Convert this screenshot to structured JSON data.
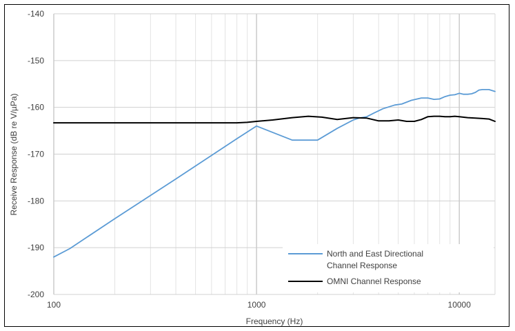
{
  "chart_data": {
    "type": "line",
    "xlabel": "Frequency (Hz)",
    "ylabel": "Receive Response (dB re V/µPa)",
    "xscale": "log",
    "xlim": [
      100,
      15000
    ],
    "ylim": [
      -200,
      -140
    ],
    "x_ticks": [
      "100",
      "1000",
      "10000"
    ],
    "y_ticks": [
      "-140",
      "-150",
      "-160",
      "-170",
      "-180",
      "-190",
      "-200"
    ],
    "grid": true,
    "legend_position": "bottom-right",
    "series": [
      {
        "name": "North and East Directional Channel Response",
        "color": "#5b9bd5",
        "x": [
          100,
          120,
          200,
          400,
          800,
          1000,
          1500,
          2000,
          2500,
          3000,
          3200,
          3500,
          3800,
          4200,
          4800,
          5200,
          5800,
          6500,
          7000,
          7500,
          8000,
          8500,
          9000,
          9500,
          10000,
          10500,
          11000,
          11500,
          12000,
          12500,
          13000,
          14000,
          15000
        ],
        "y": [
          -192.0,
          -190.2,
          -183.8,
          -175.3,
          -166.7,
          -164.0,
          -167.0,
          -167.0,
          -164.5,
          -162.7,
          -162.3,
          -162.0,
          -161.2,
          -160.3,
          -159.5,
          -159.3,
          -158.5,
          -158.0,
          -158.0,
          -158.3,
          -158.2,
          -157.7,
          -157.4,
          -157.3,
          -157.0,
          -157.2,
          -157.2,
          -157.1,
          -156.8,
          -156.3,
          -156.2,
          -156.2,
          -156.6
        ]
      },
      {
        "name": "OMNI Channel Response",
        "color": "#000000",
        "x": [
          100,
          200,
          400,
          700,
          800,
          900,
          1000,
          1200,
          1500,
          1800,
          2100,
          2500,
          3000,
          3500,
          4000,
          4500,
          5000,
          5500,
          6000,
          6500,
          7000,
          7500,
          8000,
          8500,
          9000,
          9500,
          10000,
          11000,
          12000,
          13000,
          14000,
          15000
        ],
        "y": [
          -163.3,
          -163.3,
          -163.3,
          -163.3,
          -163.3,
          -163.2,
          -163.0,
          -162.7,
          -162.2,
          -161.9,
          -162.1,
          -162.6,
          -162.2,
          -162.3,
          -162.9,
          -162.9,
          -162.7,
          -163.0,
          -163.0,
          -162.6,
          -162.0,
          -161.9,
          -161.9,
          -162.0,
          -162.0,
          -161.9,
          -162.0,
          -162.2,
          -162.3,
          -162.4,
          -162.5,
          -163.0
        ]
      }
    ]
  }
}
